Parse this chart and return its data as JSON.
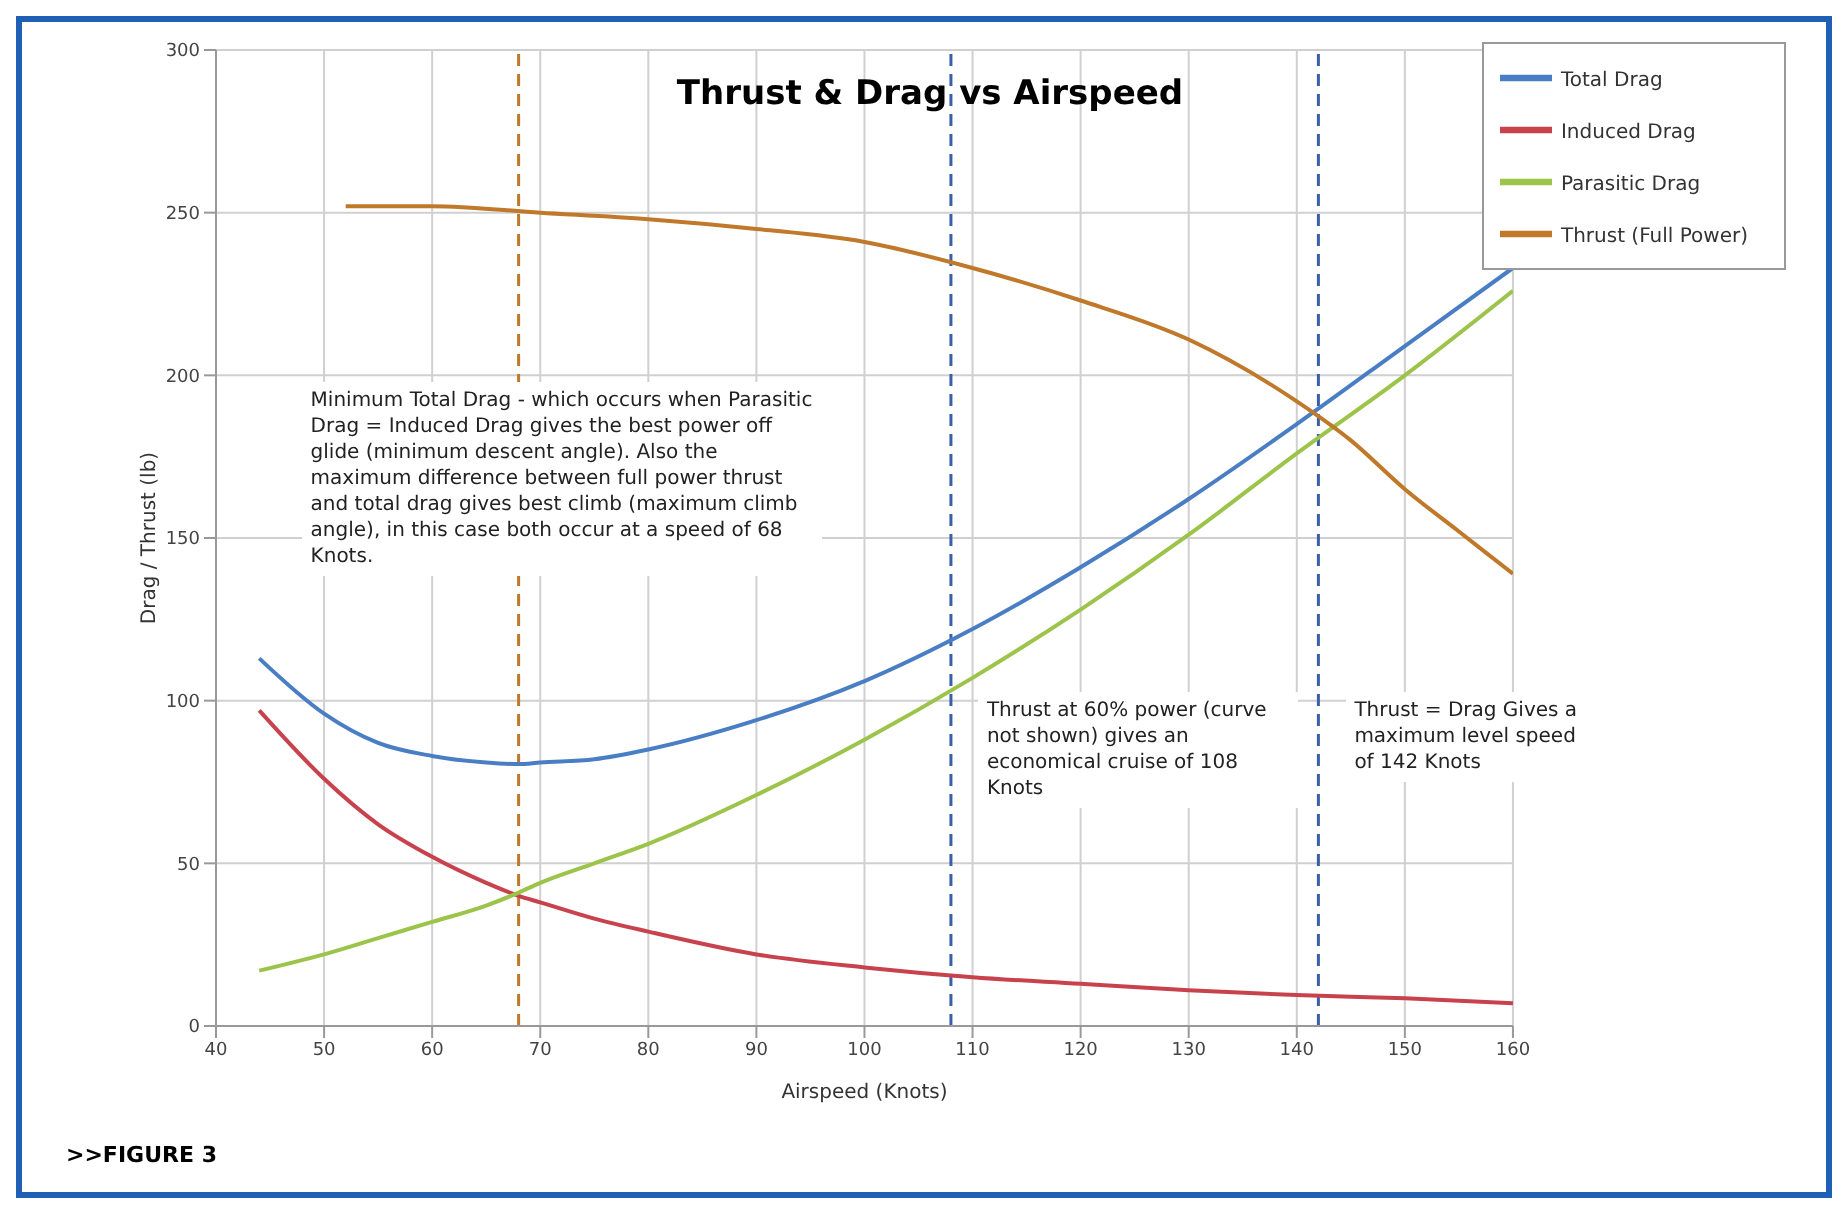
{
  "chart_data": {
    "type": "line",
    "title": "Thrust & Drag vs Airspeed",
    "xlabel": "Airspeed (Knots)",
    "ylabel": "Drag / Thrust (lb)",
    "xlim": [
      40,
      160
    ],
    "xticks": [
      40,
      50,
      60,
      70,
      80,
      90,
      100,
      110,
      120,
      130,
      140,
      150,
      160
    ],
    "ylim": [
      0,
      300
    ],
    "yticks": [
      0,
      50,
      100,
      150,
      200,
      250,
      300
    ],
    "grid": true,
    "legend": "top right",
    "marker": "none",
    "line_style": "solid",
    "series": [
      {
        "name": "Total Drag",
        "color": "#4a7ec4",
        "x": [
          44,
          50,
          55,
          60,
          65,
          68,
          70,
          75,
          80,
          90,
          100,
          110,
          120,
          130,
          140,
          150,
          160
        ],
        "values": [
          113,
          96,
          87,
          83,
          81,
          80.5,
          81,
          82,
          85,
          94,
          106,
          122,
          141,
          162,
          185,
          209,
          233
        ]
      },
      {
        "name": "Induced Drag",
        "color": "#c8424e",
        "x": [
          44,
          50,
          55,
          60,
          65,
          68,
          70,
          75,
          80,
          90,
          100,
          110,
          120,
          130,
          140,
          150,
          160
        ],
        "values": [
          97,
          76,
          62,
          52,
          44,
          40,
          38,
          33,
          29,
          22,
          18,
          15,
          13,
          11,
          9.5,
          8.5,
          7
        ]
      },
      {
        "name": "Parasitic Drag",
        "color": "#9cc34a",
        "x": [
          44,
          50,
          55,
          60,
          65,
          68,
          70,
          75,
          80,
          90,
          100,
          110,
          120,
          130,
          140,
          150,
          160
        ],
        "values": [
          17,
          22,
          27,
          32,
          37,
          41,
          44,
          50,
          56,
          71,
          88,
          107,
          128,
          151,
          176,
          200,
          226
        ]
      },
      {
        "name": "Thrust (Full Power)",
        "color": "#c0782a",
        "x": [
          52,
          60,
          70,
          80,
          90,
          100,
          110,
          120,
          130,
          140,
          145,
          150,
          155,
          160
        ],
        "values": [
          252,
          252,
          250,
          248,
          245,
          241,
          233,
          223,
          211,
          192,
          180,
          165,
          152,
          139
        ]
      }
    ],
    "ref_lines": [
      {
        "axis": "x",
        "value": 68,
        "color": "#c0782a",
        "line_style": "dashed",
        "label": "Minimum Total Drag - which occurs when Parasitic Drag = Induced Drag gives the best power off glide (minimum descent angle). Also the maximum difference between full power thrust and total drag gives best climb (maximum climb angle), in this case both occur at a speed of 68 Knots."
      },
      {
        "axis": "x",
        "value": 108,
        "color": "#3a5fa8",
        "line_style": "dashed",
        "label": "Thrust at 60% power (curve not shown) gives an economical cruise of 108 Knots"
      },
      {
        "axis": "x",
        "value": 142,
        "color": "#3a5fa8",
        "line_style": "dashed",
        "label": "Thrust = Drag Gives a maximum level speed of 142 Knots"
      }
    ],
    "annotations": [
      ">>FIGURE 3"
    ]
  }
}
